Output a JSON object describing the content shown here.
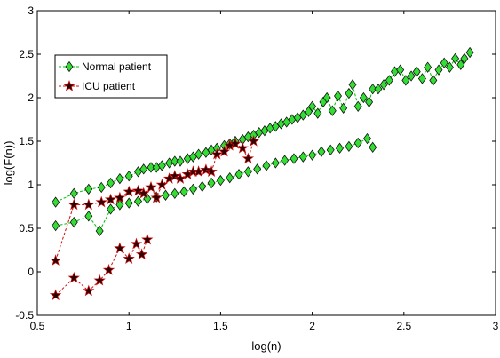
{
  "chart_data": {
    "type": "scatter",
    "title": "",
    "xlabel": "log(n)",
    "ylabel": "log(F(n))",
    "xlim": [
      0.5,
      3
    ],
    "ylim": [
      -0.5,
      3
    ],
    "xticks": [
      0.5,
      1,
      1.5,
      2,
      2.5,
      3
    ],
    "xtick_labels": [
      "0.5",
      "1",
      "1.5",
      "2",
      "2.5",
      "3"
    ],
    "yticks": [
      -0.5,
      0,
      0.5,
      1,
      1.5,
      2,
      2.5,
      3
    ],
    "ytick_labels": [
      "-0.5",
      "0",
      "0.5",
      "1",
      "1.5",
      "2",
      "2.5",
      "3"
    ],
    "grid": false,
    "legend_position": "top-left",
    "series": [
      {
        "name": "Normal patient",
        "color": "#00c000",
        "marker": "diamond",
        "marker_fill": "#33dd33",
        "line_style": "dashed",
        "segments": [
          {
            "x": [
              0.6,
              0.7,
              0.78,
              0.85,
              0.9,
              0.95,
              1.0,
              1.05,
              1.08,
              1.12,
              1.15,
              1.18,
              1.22,
              1.25,
              1.28,
              1.32,
              1.35,
              1.38,
              1.42,
              1.45,
              1.48,
              1.52,
              1.55,
              1.58,
              1.62,
              1.65,
              1.68,
              1.71,
              1.74,
              1.77,
              1.8,
              1.83,
              1.86,
              1.89,
              1.92,
              1.95,
              1.98,
              2.0,
              2.03,
              2.06,
              2.08,
              2.11,
              2.14,
              2.17,
              2.2,
              2.22,
              2.25,
              2.28,
              2.31,
              2.33,
              2.36,
              2.39,
              2.42,
              2.45,
              2.48,
              2.51,
              2.54,
              2.57,
              2.6,
              2.63,
              2.66,
              2.69,
              2.72,
              2.75,
              2.78,
              2.81,
              2.83,
              2.86
            ],
            "y": [
              0.8,
              0.9,
              0.95,
              0.97,
              1.02,
              1.07,
              1.1,
              1.15,
              1.18,
              1.2,
              1.2,
              1.22,
              1.25,
              1.27,
              1.27,
              1.3,
              1.32,
              1.35,
              1.37,
              1.4,
              1.42,
              1.45,
              1.47,
              1.5,
              1.52,
              1.55,
              1.57,
              1.6,
              1.62,
              1.65,
              1.67,
              1.7,
              1.72,
              1.75,
              1.77,
              1.8,
              1.84,
              1.9,
              1.82,
              1.95,
              2.0,
              1.85,
              2.02,
              1.88,
              2.05,
              2.15,
              1.9,
              2.0,
              1.95,
              2.1,
              2.1,
              2.15,
              2.2,
              2.3,
              2.32,
              2.2,
              2.25,
              2.3,
              2.22,
              2.35,
              2.2,
              2.32,
              2.4,
              2.35,
              2.45,
              2.38,
              2.45,
              2.52
            ]
          },
          {
            "x": [
              0.6,
              0.7,
              0.78,
              0.84,
              0.9,
              0.95,
              1.0,
              1.05,
              1.1,
              1.15,
              1.2,
              1.25,
              1.3,
              1.35,
              1.4,
              1.45,
              1.5,
              1.55,
              1.6,
              1.65,
              1.7,
              1.75,
              1.8,
              1.85,
              1.9,
              1.95,
              2.0,
              2.05,
              2.1,
              2.15,
              2.2,
              2.25,
              2.3,
              2.33
            ],
            "y": [
              0.53,
              0.57,
              0.64,
              0.47,
              0.72,
              0.77,
              0.79,
              0.81,
              0.84,
              0.86,
              0.88,
              0.9,
              0.92,
              0.95,
              0.98,
              1.02,
              1.05,
              1.08,
              1.12,
              1.15,
              1.18,
              1.22,
              1.25,
              1.28,
              1.3,
              1.32,
              1.34,
              1.38,
              1.4,
              1.42,
              1.44,
              1.48,
              1.53,
              1.43
            ]
          }
        ]
      },
      {
        "name": "ICU patient",
        "color": "#d01010",
        "marker": "star",
        "marker_fill": "#300000",
        "line_style": "dashed",
        "segments": [
          {
            "x": [
              0.6,
              0.7,
              0.78,
              0.85,
              0.9,
              0.95,
              1.0,
              1.05,
              1.08,
              1.12,
              1.15,
              1.18,
              1.22,
              1.25,
              1.28,
              1.32,
              1.35,
              1.38,
              1.42,
              1.45,
              1.48,
              1.52,
              1.55,
              1.58,
              1.62,
              1.65,
              1.68
            ],
            "y": [
              0.13,
              0.77,
              0.77,
              0.8,
              0.83,
              0.85,
              0.92,
              0.93,
              0.9,
              0.97,
              0.85,
              1.0,
              1.07,
              1.1,
              1.07,
              1.12,
              1.15,
              1.15,
              1.17,
              1.15,
              1.35,
              1.38,
              1.45,
              1.47,
              1.42,
              1.3,
              1.5
            ]
          },
          {
            "x": [
              0.6,
              0.7,
              0.78,
              0.84,
              0.89,
              0.95,
              1.0,
              1.04,
              1.07,
              1.1
            ],
            "y": [
              -0.27,
              -0.07,
              -0.22,
              -0.1,
              0.02,
              0.27,
              0.15,
              0.32,
              0.2,
              0.37
            ]
          }
        ]
      }
    ]
  }
}
